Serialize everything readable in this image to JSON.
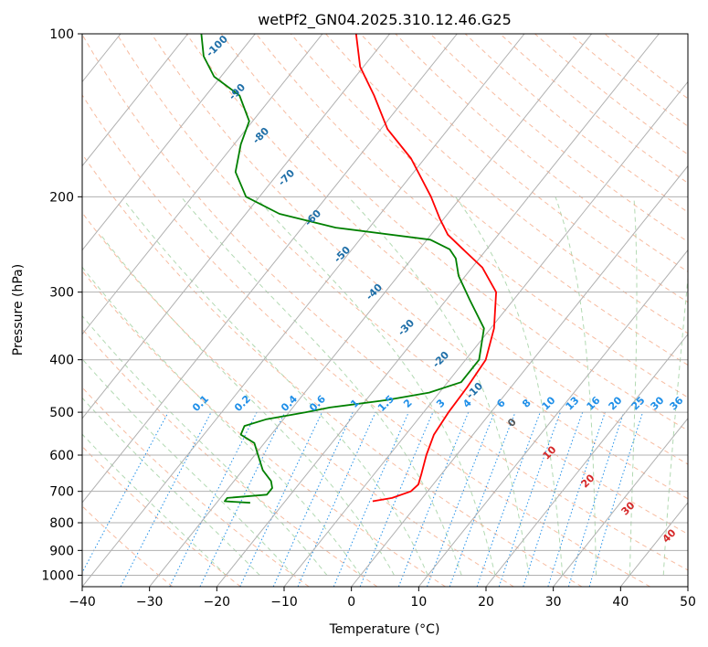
{
  "chart_data": {
    "type": "line",
    "subtype": "skew-t log-p diagram",
    "title": "wetPf2_GN04.2025.310.12.46.G25",
    "xlabel": "Temperature (°C)",
    "ylabel": "Pressure (hPa)",
    "xlim": [
      -40,
      50
    ],
    "ylim": [
      1050,
      100
    ],
    "yscale": "log",
    "x_ticks": [
      -40,
      -30,
      -20,
      -10,
      0,
      10,
      20,
      30,
      40,
      50
    ],
    "x_tick_labels": [
      "−40",
      "−30",
      "−20",
      "−10",
      "0",
      "10",
      "20",
      "30",
      "40",
      "50"
    ],
    "y_ticks": [
      100,
      200,
      300,
      400,
      500,
      600,
      700,
      800,
      900,
      1000
    ],
    "y_tick_labels": [
      "100",
      "200",
      "300",
      "400",
      "500",
      "600",
      "700",
      "800",
      "900",
      "1000"
    ],
    "grid": true,
    "series": [
      {
        "role": "temperature",
        "color": "#ff0000",
        "points": [
          {
            "p": 730,
            "t": -7.0
          },
          {
            "p": 720,
            "t": -4.5
          },
          {
            "p": 700,
            "t": -2.5
          },
          {
            "p": 680,
            "t": -2.2
          },
          {
            "p": 650,
            "t": -3.0
          },
          {
            "p": 600,
            "t": -4.5
          },
          {
            "p": 550,
            "t": -5.8
          },
          {
            "p": 500,
            "t": -6.3
          },
          {
            "p": 450,
            "t": -6.5
          },
          {
            "p": 400,
            "t": -7.0
          },
          {
            "p": 350,
            "t": -9.5
          },
          {
            "p": 300,
            "t": -13.5
          },
          {
            "p": 270,
            "t": -18.5
          },
          {
            "p": 250,
            "t": -23.5
          },
          {
            "p": 235,
            "t": -27.5
          },
          {
            "p": 220,
            "t": -30.5
          },
          {
            "p": 200,
            "t": -34.5
          },
          {
            "p": 170,
            "t": -42.0
          },
          {
            "p": 150,
            "t": -49.0
          },
          {
            "p": 130,
            "t": -55.0
          },
          {
            "p": 115,
            "t": -60.5
          },
          {
            "p": 100,
            "t": -65.0
          }
        ]
      },
      {
        "role": "dewpoint",
        "color": "#008000",
        "points": [
          {
            "p": 735,
            "t": -25.0
          },
          {
            "p": 730,
            "t": -29.0
          },
          {
            "p": 720,
            "t": -29.0
          },
          {
            "p": 710,
            "t": -23.5
          },
          {
            "p": 690,
            "t": -23.5
          },
          {
            "p": 670,
            "t": -24.5
          },
          {
            "p": 640,
            "t": -27.0
          },
          {
            "p": 600,
            "t": -29.5
          },
          {
            "p": 570,
            "t": -31.5
          },
          {
            "p": 550,
            "t": -34.5
          },
          {
            "p": 530,
            "t": -35.0
          },
          {
            "p": 515,
            "t": -32.5
          },
          {
            "p": 500,
            "t": -27.5
          },
          {
            "p": 490,
            "t": -24.5
          },
          {
            "p": 475,
            "t": -17.0
          },
          {
            "p": 460,
            "t": -11.5
          },
          {
            "p": 440,
            "t": -8.0
          },
          {
            "p": 400,
            "t": -8.0
          },
          {
            "p": 350,
            "t": -11.0
          },
          {
            "p": 310,
            "t": -16.5
          },
          {
            "p": 280,
            "t": -21.0
          },
          {
            "p": 260,
            "t": -23.5
          },
          {
            "p": 250,
            "t": -25.5
          },
          {
            "p": 240,
            "t": -29.5
          },
          {
            "p": 228,
            "t": -45.0
          },
          {
            "p": 215,
            "t": -55.0
          },
          {
            "p": 200,
            "t": -62.0
          },
          {
            "p": 180,
            "t": -66.5
          },
          {
            "p": 160,
            "t": -69.0
          },
          {
            "p": 145,
            "t": -70.5
          },
          {
            "p": 130,
            "t": -75.0
          },
          {
            "p": 120,
            "t": -81.0
          },
          {
            "p": 110,
            "t": -85.0
          },
          {
            "p": 100,
            "t": -88.0
          }
        ]
      }
    ],
    "dry_adiabat_labels": [
      "-100",
      "-90",
      "-80",
      "-70",
      "-60",
      "-50",
      "-40",
      "-30",
      "-20",
      "-10"
    ],
    "moist_adiabat_labels": [
      "0",
      "10",
      "20",
      "30",
      "40"
    ],
    "mixing_ratio_labels": [
      "0.1",
      "0.2",
      "0.4",
      "0.6",
      "1",
      "1.5",
      "2",
      "3",
      "4",
      "6",
      "8",
      "10",
      "13",
      "16",
      "20",
      "25",
      "30",
      "36"
    ]
  }
}
